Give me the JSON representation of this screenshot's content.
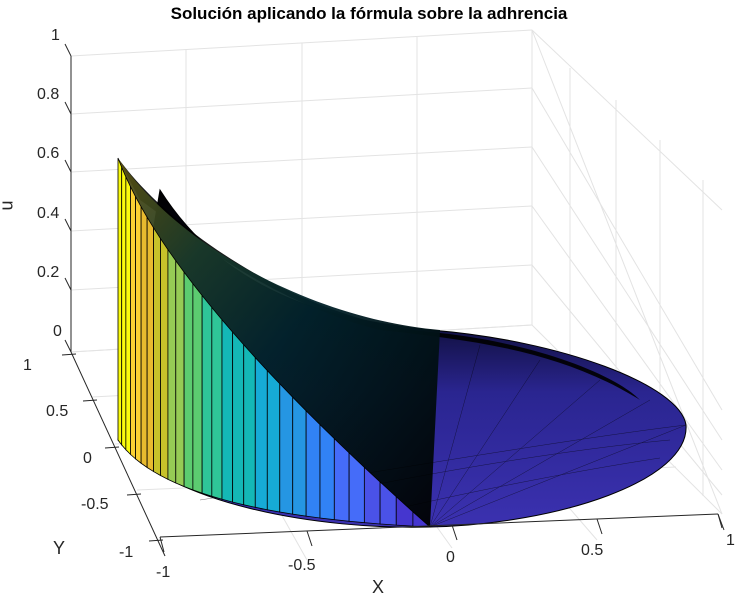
{
  "chart_data": {
    "type": "surface3d",
    "title": "Solución aplicando la fórmula sobre la adhrencia",
    "xlabel": "X",
    "ylabel": "Y",
    "zlabel": "u",
    "xlim": [
      -1,
      1
    ],
    "ylim": [
      -1,
      1
    ],
    "zlim": [
      0,
      1
    ],
    "x_ticks": [
      "-1",
      "-0.5",
      "0",
      "0.5",
      "1"
    ],
    "y_ticks": [
      "-1",
      "-0.5",
      "0",
      "0.5",
      "1"
    ],
    "z_ticks": [
      "0",
      "0.2",
      "0.4",
      "0.6",
      "0.8",
      "1"
    ],
    "grid": true,
    "colormap": "parula",
    "description": "Polar-mesh surface over unit disk; u is ~0.6 at boundary point (-1,0) and decays toward ~0 across the disk; boundary wall rendered from z=0 to u along the front-left rim",
    "peak_value": 0.62,
    "peak_location": {
      "x": -1,
      "y": 0
    },
    "min_value": 0
  },
  "title": "Solución aplicando la fórmula sobre la adhrencia",
  "axes": {
    "z_ticks": [
      "1",
      "0.8",
      "0.6",
      "0.4",
      "0.2",
      "0"
    ],
    "y_ticks": [
      "1",
      "0.5",
      "0",
      "-0.5",
      "-1"
    ],
    "x_ticks": [
      "-1",
      "-0.5",
      "0",
      "0.5",
      "1"
    ],
    "xlabel": "X",
    "ylabel": "Y",
    "zlabel": "u"
  },
  "colors": {
    "grid": "#e3e3e3",
    "axis": "#262626",
    "surface_dark": "#000000",
    "disk": "#3a2fa0",
    "parula": [
      "#f9fb0e",
      "#fbd033",
      "#e8ba2f",
      "#c7c22a",
      "#96cb55",
      "#5ccc70",
      "#2fc598",
      "#14b8b6",
      "#16abd6",
      "#2596e3",
      "#3182f5",
      "#456cf9",
      "#4a52e8",
      "#4536cf"
    ]
  }
}
